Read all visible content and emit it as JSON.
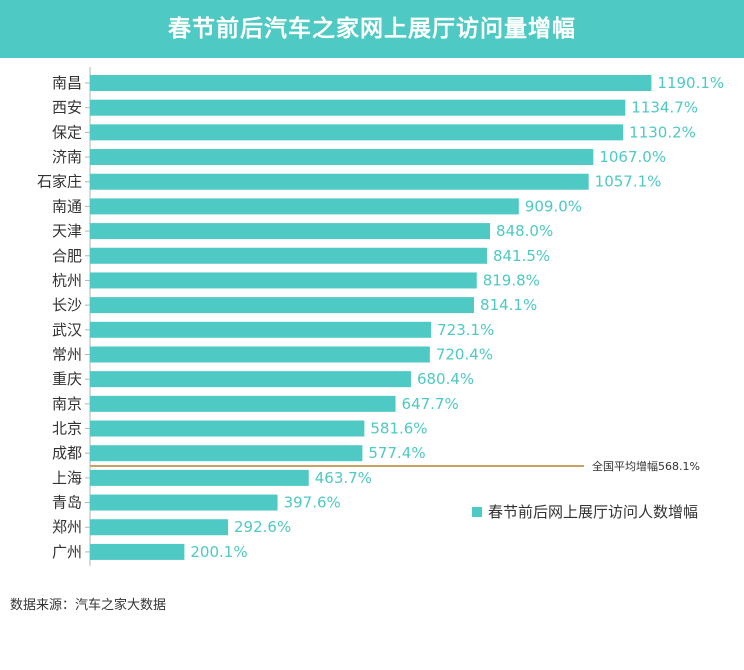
{
  "title": "春节前后汽车之家网上展厅访问量增幅",
  "source": "数据来源：汽车之家大数据",
  "colors": {
    "bar": "#4ec9c3",
    "avg_line": "#c9a066",
    "axis": "#b3b3b3",
    "title_bg": "#4ec9c3"
  },
  "chart_data": {
    "type": "bar",
    "orientation": "horizontal",
    "title": "春节前后汽车之家网上展厅访问量增幅",
    "categories": [
      "南昌",
      "西安",
      "保定",
      "济南",
      "石家庄",
      "南通",
      "天津",
      "合肥",
      "杭州",
      "长沙",
      "武汉",
      "常州",
      "重庆",
      "南京",
      "北京",
      "成都",
      "上海",
      "青岛",
      "郑州",
      "广州"
    ],
    "series": [
      {
        "name": "春节前后网上展厅访问人数增幅",
        "values": [
          1190.1,
          1134.7,
          1130.2,
          1067.0,
          1057.1,
          909.0,
          848.0,
          841.5,
          819.8,
          814.1,
          723.1,
          720.4,
          680.4,
          647.7,
          581.6,
          577.4,
          463.7,
          397.6,
          292.6,
          200.1
        ]
      }
    ],
    "value_labels": [
      "1190.1%",
      "1134.7%",
      "1130.2%",
      "1067.0%",
      "1057.1%",
      "909.0%",
      "848.0%",
      "841.5%",
      "819.8%",
      "814.1%",
      "723.1%",
      "720.4%",
      "680.4%",
      "647.7%",
      "581.6%",
      "577.4%",
      "463.7%",
      "397.6%",
      "292.6%",
      "200.1%"
    ],
    "reference_line": {
      "label": "全国平均增幅568.1%",
      "value": 568.1
    },
    "xlim": [
      0,
      1380
    ],
    "legend": "right",
    "grid": false
  }
}
